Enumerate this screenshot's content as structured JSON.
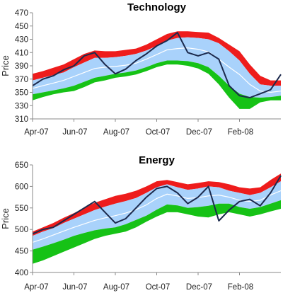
{
  "colors": {
    "upper_band": "#ee1c1c",
    "inner_band": "#a9d2fb",
    "lower_band": "#16c216",
    "mid_line": "#ffffff",
    "price_line": "#1c2a4d"
  },
  "x_tick_labels": [
    "Apr-07",
    "Jun-07",
    "Aug-07",
    "Oct-07",
    "Dec-07",
    "Feb-08"
  ],
  "chart_data": [
    {
      "type": "area",
      "title": "Technology",
      "ylabel": "Price",
      "xlabel": "",
      "ylim": [
        310,
        470
      ],
      "yticks": [
        310,
        330,
        350,
        370,
        390,
        410,
        430,
        450,
        470
      ],
      "xlim": [
        0,
        12
      ],
      "x_tick_labels": [
        "Apr-07",
        "Jun-07",
        "Aug-07",
        "Oct-07",
        "Dec-07",
        "Feb-08"
      ],
      "grid": false,
      "legend": "none",
      "x": [
        0,
        0.5,
        1,
        1.5,
        2,
        2.5,
        3,
        3.5,
        4,
        4.5,
        5,
        5.5,
        6,
        6.5,
        7,
        7.5,
        8,
        8.5,
        9,
        9.5,
        10,
        10.5,
        11,
        11.5,
        12
      ],
      "bands": {
        "top": [
          378,
          382,
          387,
          392,
          400,
          408,
          413,
          412,
          412,
          414,
          416,
          422,
          430,
          438,
          442,
          442,
          441,
          440,
          432,
          422,
          412,
          392,
          375,
          368,
          368
        ],
        "upper_inner": [
          368,
          372,
          376,
          380,
          388,
          395,
          402,
          402,
          403,
          405,
          408,
          413,
          420,
          428,
          432,
          433,
          432,
          430,
          424,
          412,
          398,
          378,
          362,
          360,
          360
        ],
        "middle": [
          356,
          360,
          364,
          368,
          374,
          380,
          386,
          388,
          389,
          391,
          394,
          400,
          407,
          414,
          416,
          417,
          415,
          411,
          400,
          388,
          377,
          362,
          352,
          350,
          352
        ],
        "lower_inner": [
          347,
          350,
          353,
          356,
          360,
          366,
          372,
          375,
          378,
          380,
          383,
          388,
          394,
          398,
          398,
          397,
          394,
          388,
          375,
          360,
          348,
          343,
          342,
          343,
          345
        ],
        "bottom": [
          338,
          343,
          347,
          350,
          352,
          358,
          365,
          368,
          372,
          374,
          377,
          382,
          388,
          392,
          392,
          390,
          386,
          378,
          362,
          342,
          325,
          325,
          335,
          338,
          338
        ]
      },
      "price": [
        360,
        370,
        375,
        384,
        390,
        405,
        410,
        392,
        378,
        385,
        398,
        408,
        420,
        428,
        440,
        410,
        405,
        410,
        400,
        360,
        345,
        342,
        348,
        354,
        377
      ]
    },
    {
      "type": "area",
      "title": "Energy",
      "ylabel": "Price",
      "xlabel": "",
      "ylim": [
        400,
        650
      ],
      "yticks": [
        400,
        450,
        500,
        550,
        600,
        650
      ],
      "xlim": [
        0,
        12
      ],
      "x_tick_labels": [
        "Apr-07",
        "Jun-07",
        "Aug-07",
        "Oct-07",
        "Dec-07",
        "Feb-08"
      ],
      "grid": false,
      "legend": "none",
      "x": [
        0,
        0.5,
        1,
        1.5,
        2,
        2.5,
        3,
        3.5,
        4,
        4.5,
        5,
        5.5,
        6,
        6.5,
        7,
        7.5,
        8,
        8.5,
        9,
        9.5,
        10,
        10.5,
        11,
        11.5,
        12
      ],
      "bands": {
        "top": [
          495,
          505,
          515,
          527,
          538,
          550,
          562,
          570,
          578,
          583,
          590,
          600,
          612,
          615,
          610,
          605,
          608,
          612,
          610,
          605,
          598,
          595,
          598,
          615,
          630
        ],
        "upper_inner": [
          485,
          495,
          503,
          515,
          525,
          535,
          545,
          553,
          560,
          566,
          573,
          585,
          598,
          605,
          598,
          592,
          595,
          600,
          598,
          590,
          585,
          580,
          585,
          598,
          612
        ],
        "middle": [
          470,
          478,
          487,
          496,
          505,
          513,
          521,
          527,
          532,
          538,
          546,
          557,
          572,
          582,
          578,
          572,
          574,
          578,
          580,
          575,
          568,
          565,
          568,
          580,
          590
        ],
        "lower_inner": [
          453,
          460,
          468,
          476,
          485,
          492,
          498,
          502,
          505,
          512,
          522,
          532,
          546,
          558,
          556,
          550,
          552,
          555,
          560,
          560,
          552,
          548,
          552,
          560,
          568
        ],
        "bottom": [
          420,
          428,
          438,
          448,
          458,
          468,
          478,
          485,
          490,
          495,
          505,
          518,
          530,
          540,
          540,
          535,
          530,
          528,
          535,
          540,
          535,
          530,
          535,
          542,
          548
        ]
      },
      "price": [
        490,
        500,
        505,
        520,
        535,
        550,
        565,
        540,
        515,
        525,
        550,
        575,
        595,
        600,
        585,
        560,
        575,
        600,
        520,
        545,
        565,
        570,
        555,
        585,
        625
      ]
    }
  ]
}
